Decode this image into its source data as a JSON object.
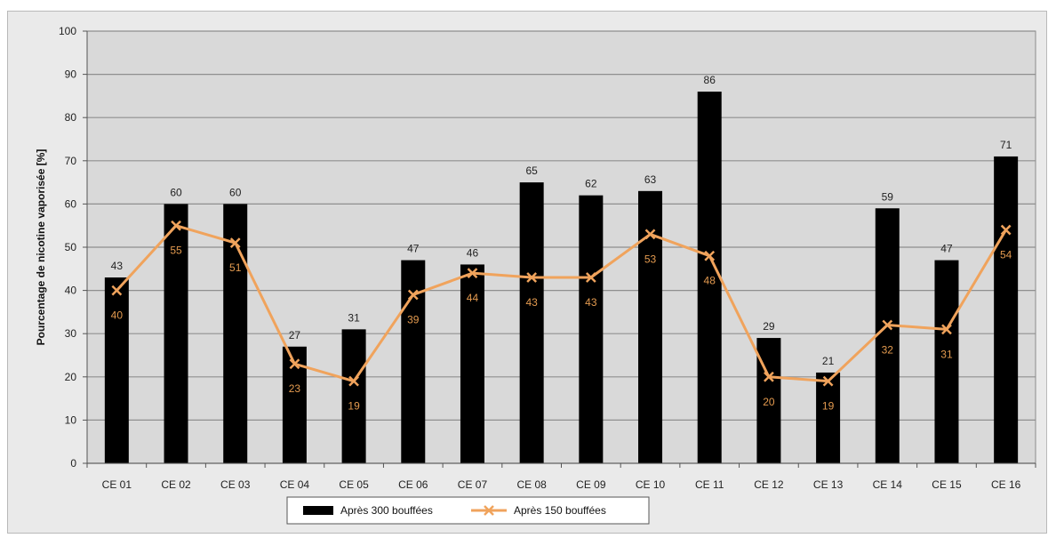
{
  "chart_data": {
    "type": "bar",
    "categories": [
      "CE 01",
      "CE 02",
      "CE 03",
      "CE 04",
      "CE 05",
      "CE 06",
      "CE 07",
      "CE 08",
      "CE 09",
      "CE 10",
      "CE 11",
      "CE 12",
      "CE 13",
      "CE 14",
      "CE 15",
      "CE 16"
    ],
    "series": [
      {
        "name": "Après 300 bouffées",
        "type": "bar",
        "color": "#000000",
        "values": [
          43,
          60,
          60,
          27,
          31,
          47,
          46,
          65,
          62,
          63,
          86,
          29,
          21,
          59,
          47,
          71
        ]
      },
      {
        "name": "Après 150 bouffées",
        "type": "line",
        "color": "#f0a35c",
        "marker": "x",
        "values": [
          40,
          55,
          51,
          23,
          19,
          39,
          44,
          43,
          43,
          53,
          48,
          20,
          19,
          32,
          31,
          54
        ]
      }
    ],
    "ylabel": "Pourcentage de nicotine vaporisée  [%]",
    "xlabel": "",
    "ylim": [
      0,
      100
    ],
    "yticks": [
      0,
      10,
      20,
      30,
      40,
      50,
      60,
      70,
      80,
      90,
      100
    ],
    "grid": true,
    "legend_position": "bottom"
  }
}
